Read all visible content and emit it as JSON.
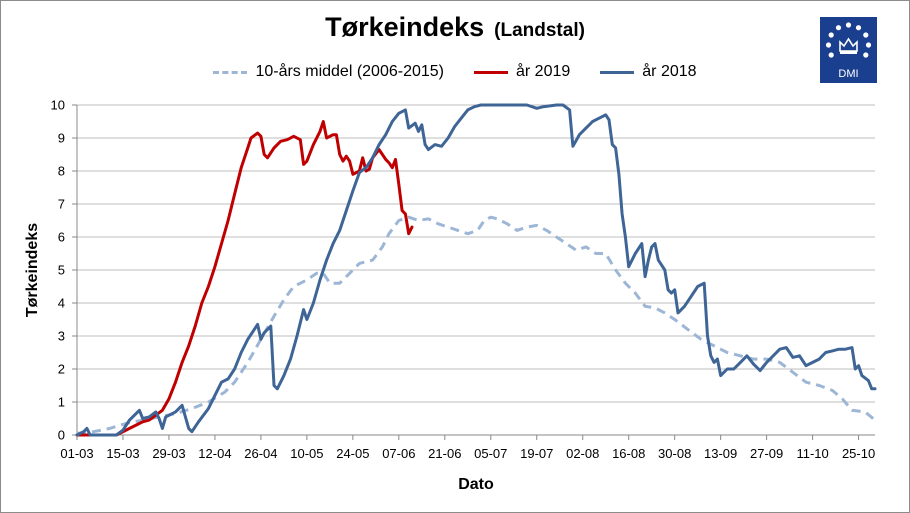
{
  "chart_data": {
    "type": "line",
    "title": "Tørkeindeks",
    "subtitle": "(Landstal)",
    "xlabel": "Dato",
    "ylabel": "Tørkeindeks",
    "ylim": [
      0,
      10
    ],
    "yticks": [
      "0",
      "1",
      "2",
      "3",
      "4",
      "5",
      "6",
      "7",
      "8",
      "9",
      "10"
    ],
    "xlim": [
      0,
      243
    ],
    "xticks": [
      {
        "day": 0,
        "label": "01-03"
      },
      {
        "day": 14,
        "label": "15-03"
      },
      {
        "day": 28,
        "label": "29-03"
      },
      {
        "day": 42,
        "label": "12-04"
      },
      {
        "day": 56,
        "label": "26-04"
      },
      {
        "day": 70,
        "label": "10-05"
      },
      {
        "day": 84,
        "label": "24-05"
      },
      {
        "day": 98,
        "label": "07-06"
      },
      {
        "day": 112,
        "label": "21-06"
      },
      {
        "day": 126,
        "label": "05-07"
      },
      {
        "day": 140,
        "label": "19-07"
      },
      {
        "day": 154,
        "label": "02-08"
      },
      {
        "day": 168,
        "label": "16-08"
      },
      {
        "day": 182,
        "label": "30-08"
      },
      {
        "day": 196,
        "label": "13-09"
      },
      {
        "day": 210,
        "label": "27-09"
      },
      {
        "day": 224,
        "label": "11-10"
      },
      {
        "day": 238,
        "label": "25-10"
      }
    ],
    "grid": "horizontal",
    "legend_position": "top",
    "series": [
      {
        "name": "10-års middel (2006-2015)",
        "color": "#9db6d6",
        "style": "dashed",
        "points": [
          [
            0,
            0.05
          ],
          [
            5,
            0.1
          ],
          [
            10,
            0.2
          ],
          [
            15,
            0.35
          ],
          [
            20,
            0.45
          ],
          [
            25,
            0.55
          ],
          [
            30,
            0.65
          ],
          [
            35,
            0.8
          ],
          [
            40,
            1.0
          ],
          [
            45,
            1.3
          ],
          [
            48,
            1.6
          ],
          [
            52,
            2.2
          ],
          [
            56,
            2.9
          ],
          [
            60,
            3.6
          ],
          [
            63,
            4.1
          ],
          [
            66,
            4.5
          ],
          [
            70,
            4.7
          ],
          [
            73,
            4.9
          ],
          [
            75,
            4.9
          ],
          [
            77,
            4.6
          ],
          [
            80,
            4.6
          ],
          [
            83,
            4.9
          ],
          [
            86,
            5.2
          ],
          [
            90,
            5.3
          ],
          [
            93,
            5.7
          ],
          [
            95,
            6.1
          ],
          [
            98,
            6.5
          ],
          [
            101,
            6.6
          ],
          [
            104,
            6.5
          ],
          [
            107,
            6.55
          ],
          [
            110,
            6.4
          ],
          [
            113,
            6.3
          ],
          [
            116,
            6.2
          ],
          [
            119,
            6.1
          ],
          [
            122,
            6.2
          ],
          [
            124,
            6.5
          ],
          [
            126,
            6.6
          ],
          [
            128,
            6.55
          ],
          [
            131,
            6.4
          ],
          [
            134,
            6.2
          ],
          [
            137,
            6.3
          ],
          [
            140,
            6.35
          ],
          [
            143,
            6.2
          ],
          [
            146,
            6.0
          ],
          [
            149,
            5.8
          ],
          [
            152,
            5.6
          ],
          [
            155,
            5.7
          ],
          [
            158,
            5.5
          ],
          [
            161,
            5.5
          ],
          [
            164,
            5.0
          ],
          [
            167,
            4.6
          ],
          [
            170,
            4.3
          ],
          [
            173,
            3.9
          ],
          [
            176,
            3.85
          ],
          [
            179,
            3.7
          ],
          [
            182,
            3.5
          ],
          [
            186,
            3.2
          ],
          [
            190,
            2.9
          ],
          [
            194,
            2.7
          ],
          [
            198,
            2.5
          ],
          [
            202,
            2.4
          ],
          [
            206,
            2.3
          ],
          [
            210,
            2.3
          ],
          [
            214,
            2.2
          ],
          [
            218,
            1.9
          ],
          [
            222,
            1.6
          ],
          [
            226,
            1.5
          ],
          [
            230,
            1.35
          ],
          [
            233,
            1.1
          ],
          [
            236,
            0.75
          ],
          [
            240,
            0.7
          ],
          [
            243,
            0.45
          ]
        ]
      },
      {
        "name": "år 2019",
        "color": "#c00000",
        "style": "solid",
        "points": [
          [
            0,
            0.0
          ],
          [
            4,
            0.0
          ],
          [
            8,
            0.0
          ],
          [
            12,
            0.0
          ],
          [
            16,
            0.2
          ],
          [
            18,
            0.3
          ],
          [
            20,
            0.4
          ],
          [
            22,
            0.45
          ],
          [
            24,
            0.6
          ],
          [
            26,
            0.75
          ],
          [
            28,
            1.1
          ],
          [
            30,
            1.6
          ],
          [
            32,
            2.2
          ],
          [
            34,
            2.7
          ],
          [
            36,
            3.3
          ],
          [
            38,
            4.0
          ],
          [
            40,
            4.5
          ],
          [
            42,
            5.1
          ],
          [
            44,
            5.8
          ],
          [
            46,
            6.5
          ],
          [
            48,
            7.3
          ],
          [
            50,
            8.1
          ],
          [
            52,
            8.7
          ],
          [
            53,
            9.0
          ],
          [
            55,
            9.15
          ],
          [
            56,
            9.05
          ],
          [
            57,
            8.5
          ],
          [
            58,
            8.4
          ],
          [
            60,
            8.7
          ],
          [
            62,
            8.9
          ],
          [
            64,
            8.95
          ],
          [
            66,
            9.05
          ],
          [
            68,
            8.95
          ],
          [
            69,
            8.2
          ],
          [
            70,
            8.3
          ],
          [
            72,
            8.8
          ],
          [
            74,
            9.2
          ],
          [
            75,
            9.5
          ],
          [
            76,
            9.0
          ],
          [
            78,
            9.1
          ],
          [
            79,
            9.1
          ],
          [
            80,
            8.5
          ],
          [
            81,
            8.3
          ],
          [
            82,
            8.45
          ],
          [
            83,
            8.3
          ],
          [
            84,
            7.9
          ],
          [
            86,
            8.0
          ],
          [
            87,
            8.4
          ],
          [
            88,
            8.0
          ],
          [
            89,
            8.05
          ],
          [
            90,
            8.4
          ],
          [
            92,
            8.65
          ],
          [
            93,
            8.5
          ],
          [
            94,
            8.35
          ],
          [
            95,
            8.25
          ],
          [
            96,
            8.1
          ],
          [
            97,
            8.35
          ],
          [
            98,
            7.6
          ],
          [
            99,
            6.8
          ],
          [
            100,
            6.7
          ],
          [
            101,
            6.1
          ],
          [
            102,
            6.3
          ]
        ]
      },
      {
        "name": "år 2018",
        "color": "#3e6596",
        "style": "solid",
        "points": [
          [
            0,
            0.0
          ],
          [
            2,
            0.1
          ],
          [
            3,
            0.2
          ],
          [
            4,
            0.0
          ],
          [
            8,
            0.0
          ],
          [
            12,
            0.0
          ],
          [
            14,
            0.15
          ],
          [
            16,
            0.45
          ],
          [
            18,
            0.65
          ],
          [
            19,
            0.75
          ],
          [
            20,
            0.5
          ],
          [
            22,
            0.55
          ],
          [
            24,
            0.7
          ],
          [
            25,
            0.5
          ],
          [
            26,
            0.2
          ],
          [
            27,
            0.55
          ],
          [
            30,
            0.7
          ],
          [
            32,
            0.9
          ],
          [
            34,
            0.2
          ],
          [
            35,
            0.1
          ],
          [
            37,
            0.4
          ],
          [
            40,
            0.8
          ],
          [
            42,
            1.2
          ],
          [
            44,
            1.6
          ],
          [
            46,
            1.7
          ],
          [
            48,
            2.0
          ],
          [
            50,
            2.5
          ],
          [
            52,
            2.9
          ],
          [
            54,
            3.2
          ],
          [
            55,
            3.35
          ],
          [
            56,
            2.9
          ],
          [
            57,
            3.1
          ],
          [
            58,
            3.2
          ],
          [
            59,
            3.3
          ],
          [
            60,
            1.5
          ],
          [
            61,
            1.4
          ],
          [
            63,
            1.8
          ],
          [
            65,
            2.3
          ],
          [
            67,
            3.0
          ],
          [
            69,
            3.8
          ],
          [
            70,
            3.5
          ],
          [
            72,
            4.0
          ],
          [
            74,
            4.7
          ],
          [
            76,
            5.3
          ],
          [
            78,
            5.8
          ],
          [
            80,
            6.2
          ],
          [
            82,
            6.8
          ],
          [
            84,
            7.4
          ],
          [
            86,
            7.95
          ],
          [
            88,
            8.1
          ],
          [
            90,
            8.4
          ],
          [
            92,
            8.8
          ],
          [
            94,
            9.1
          ],
          [
            96,
            9.5
          ],
          [
            98,
            9.75
          ],
          [
            100,
            9.85
          ],
          [
            101,
            9.3
          ],
          [
            103,
            9.45
          ],
          [
            104,
            9.2
          ],
          [
            105,
            9.4
          ],
          [
            106,
            8.8
          ],
          [
            107,
            8.65
          ],
          [
            109,
            8.8
          ],
          [
            111,
            8.75
          ],
          [
            113,
            9.0
          ],
          [
            115,
            9.35
          ],
          [
            117,
            9.6
          ],
          [
            119,
            9.85
          ],
          [
            121,
            9.95
          ],
          [
            123,
            10.0
          ],
          [
            130,
            10.0
          ],
          [
            137,
            10.0
          ],
          [
            140,
            9.9
          ],
          [
            142,
            9.95
          ],
          [
            146,
            10.0
          ],
          [
            148,
            10.0
          ],
          [
            150,
            9.85
          ],
          [
            151,
            8.75
          ],
          [
            153,
            9.1
          ],
          [
            155,
            9.3
          ],
          [
            157,
            9.5
          ],
          [
            159,
            9.6
          ],
          [
            161,
            9.7
          ],
          [
            162,
            9.55
          ],
          [
            163,
            8.8
          ],
          [
            164,
            8.7
          ],
          [
            165,
            7.9
          ],
          [
            166,
            6.7
          ],
          [
            167,
            6.0
          ],
          [
            168,
            5.1
          ],
          [
            170,
            5.5
          ],
          [
            172,
            5.8
          ],
          [
            173,
            4.8
          ],
          [
            174,
            5.3
          ],
          [
            175,
            5.7
          ],
          [
            176,
            5.8
          ],
          [
            177,
            5.3
          ],
          [
            179,
            5.0
          ],
          [
            180,
            4.4
          ],
          [
            181,
            4.3
          ],
          [
            182,
            4.4
          ],
          [
            183,
            3.7
          ],
          [
            185,
            3.9
          ],
          [
            187,
            4.2
          ],
          [
            189,
            4.5
          ],
          [
            191,
            4.6
          ],
          [
            192,
            3.0
          ],
          [
            193,
            2.4
          ],
          [
            194,
            2.2
          ],
          [
            195,
            2.3
          ],
          [
            196,
            1.8
          ],
          [
            198,
            2.0
          ],
          [
            200,
            2.0
          ],
          [
            202,
            2.2
          ],
          [
            204,
            2.4
          ],
          [
            206,
            2.15
          ],
          [
            208,
            1.95
          ],
          [
            210,
            2.2
          ],
          [
            212,
            2.4
          ],
          [
            214,
            2.6
          ],
          [
            216,
            2.65
          ],
          [
            218,
            2.35
          ],
          [
            220,
            2.4
          ],
          [
            222,
            2.1
          ],
          [
            224,
            2.2
          ],
          [
            226,
            2.3
          ],
          [
            228,
            2.5
          ],
          [
            230,
            2.55
          ],
          [
            232,
            2.6
          ],
          [
            234,
            2.6
          ],
          [
            236,
            2.65
          ],
          [
            237,
            2.0
          ],
          [
            238,
            2.1
          ],
          [
            239,
            1.8
          ],
          [
            241,
            1.65
          ],
          [
            242,
            1.4
          ],
          [
            243,
            1.4
          ]
        ]
      }
    ]
  },
  "logo": {
    "text": "DMI",
    "color": "#1b3f8f"
  }
}
